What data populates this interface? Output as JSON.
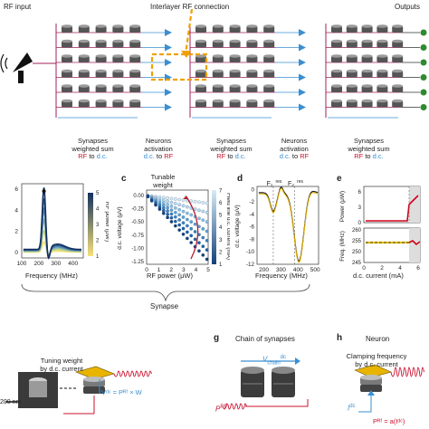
{
  "top": {
    "rf_input": "RF input",
    "interlayer": "Interlayer RF connection",
    "outputs": "Outputs",
    "synapses_line1": "Synapses",
    "synapses_line2": "weighted sum",
    "rf_word": "RF",
    "to_word": "to",
    "dc_word": "d.c.",
    "neurons_line1": "Neurons",
    "neurons_line2": "activation"
  },
  "panels": {
    "b_axis_x": "Frequency (MHz)",
    "b_colorbar": "RF power (μW)",
    "c_label": "c",
    "c_title1": "Tunable",
    "c_title2": "weight",
    "c_axis_x": "RF power (μW)",
    "c_axis_y": "d.c. voltage (μV)",
    "c_colorbar": "Field line d.c. current (mA)",
    "d_label": "d",
    "d_axis_x": "Frequency (MHz)",
    "d_axis_y": "d.c. voltage (μV)",
    "d_f1": "F₁",
    "d_f2": "F₂",
    "d_res": "res",
    "e_label": "e",
    "e_axis_y1": "Power (μW)",
    "e_axis_y2": "Freq. (MHz)",
    "e_axis_x": "d.c. current (mA)",
    "synapse_brace": "Synapse",
    "g_label": "g",
    "g_title": "Chain of synapses",
    "h_label": "h",
    "h_title": "Neuron",
    "h_sub1": "Clamping frequency",
    "h_sub2": "by d.c. current",
    "f_sub1": "Tuning weight",
    "f_sub2": "by d.c. current",
    "scale_bar": "200 nm",
    "f_eq": "Vᵈᶜ = Pᴿᶠ × W",
    "h_eq": "Pᴿᶠ = a(Iᵈᶜ)",
    "g_vchain": "V",
    "g_vchain_sub": "chain",
    "g_vchain_sup": "dc",
    "prf": "P",
    "prf_sup": "RF",
    "idc": "I",
    "idc_sup": "dc"
  },
  "chart_data": [
    {
      "type": "line",
      "panel": "b",
      "xlabel": "Frequency (MHz)",
      "ylabel": "",
      "x_ticks": [
        100,
        200,
        300,
        400
      ],
      "y_ticks": [
        0,
        2,
        4,
        6
      ],
      "xlim": [
        100,
        460
      ],
      "ylim": [
        -0.5,
        6.5
      ],
      "colorbar_label": "RF power (μW)",
      "colorbar_ticks": [
        1,
        2,
        3,
        4,
        5
      ],
      "peak_x": 230,
      "peak_y": 5.8
    },
    {
      "type": "scatter",
      "panel": "c",
      "xlabel": "RF power (μW)",
      "ylabel": "d.c. voltage (μV)",
      "x_ticks": [
        0,
        1,
        2,
        3,
        4,
        5
      ],
      "y_ticks": [
        0,
        -0.25,
        -0.5,
        -0.75,
        -1.0,
        -1.25
      ],
      "xlim": [
        0,
        5
      ],
      "ylim": [
        -1.3,
        0.1
      ],
      "colorbar_label": "Field line d.c. current (mA)",
      "colorbar_ticks": [
        1,
        2,
        3,
        4,
        5,
        6,
        7
      ]
    },
    {
      "type": "line",
      "panel": "d",
      "xlabel": "Frequency (MHz)",
      "ylabel": "d.c. voltage (μV)",
      "x_ticks": [
        200,
        300,
        400,
        500
      ],
      "y_ticks": [
        0,
        -2,
        -4,
        -6,
        -8,
        -10,
        -12
      ],
      "xlim": [
        160,
        520
      ],
      "ylim": [
        -12,
        0.5
      ]
    },
    {
      "type": "line",
      "panel": "e",
      "xlabel": "d.c. current (mA)",
      "x_ticks": [
        0,
        2,
        4,
        6
      ],
      "y1_ticks": [
        0,
        3,
        6
      ],
      "y2_ticks": [
        245,
        250,
        255,
        260
      ]
    }
  ],
  "colors": {
    "rf_red": "#c8102e",
    "dc_blue": "#3b8fd1",
    "bus_magenta": "#a0205a",
    "orange": "#f0a000"
  }
}
